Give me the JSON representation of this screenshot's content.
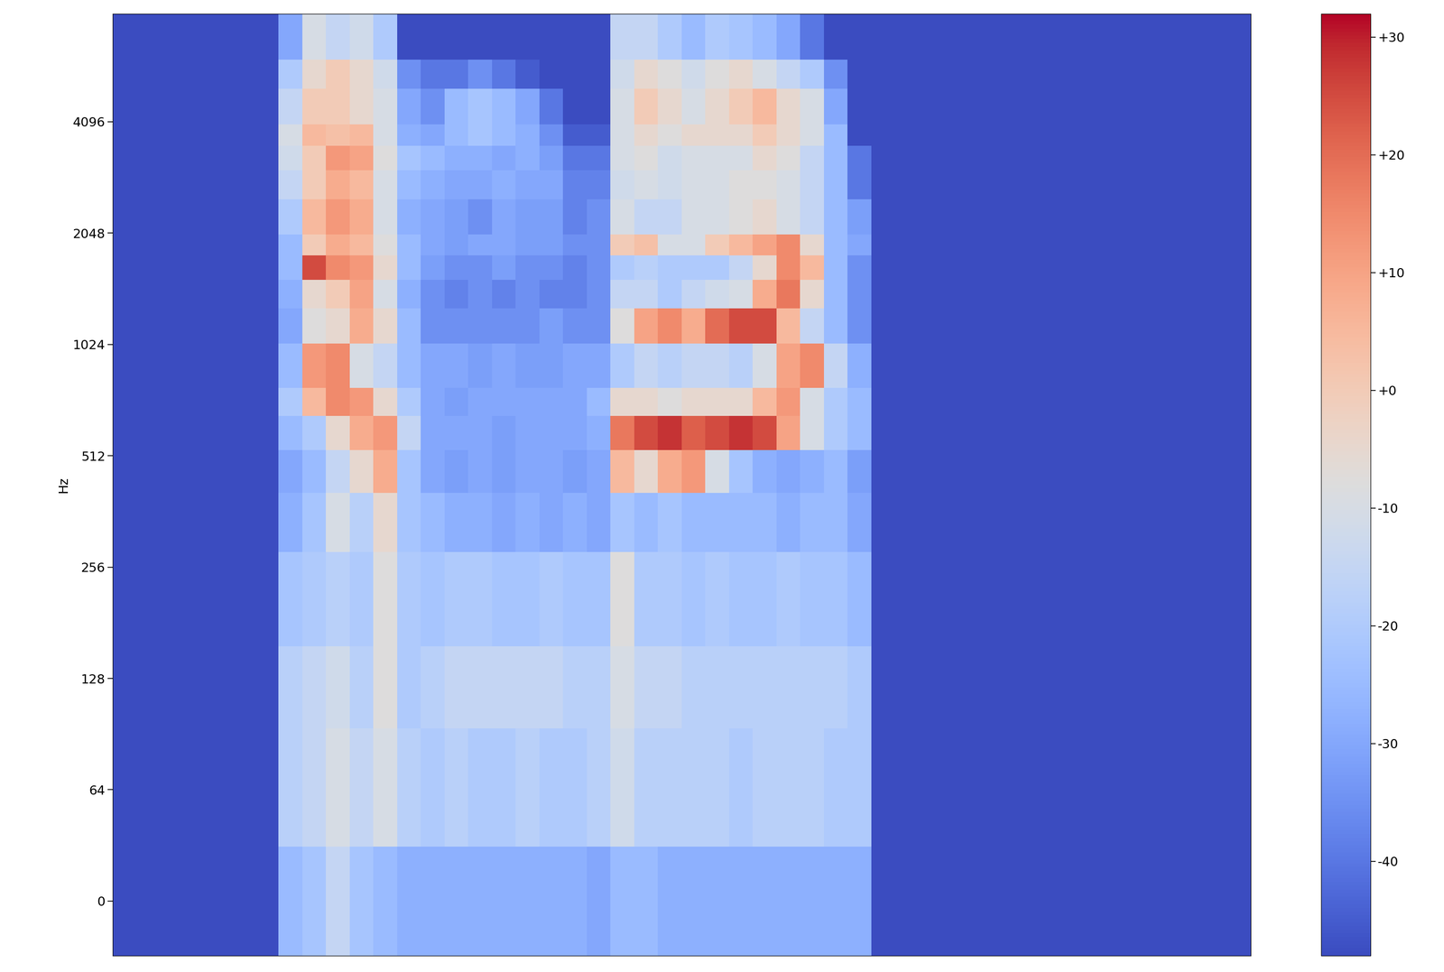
{
  "chart_data": {
    "type": "heatmap",
    "y_label": "Hz",
    "tick_labels": "y",
    "log": "y",
    "ylim": [
      -31.25,
      8031.25
    ],
    "yticks": [
      0,
      64,
      128,
      256,
      512,
      1024,
      2048,
      4096
    ],
    "freq_edges": [
      -31.25,
      31.25,
      93.75,
      156.25,
      281.25,
      406.25,
      531.25,
      656.25,
      781.25,
      1031.25,
      1281.25,
      1531.25,
      1781.25,
      2031.25,
      2531.25,
      3031.25,
      3531.25,
      4031.25,
      5031.25,
      6031.25,
      8031.25
    ],
    "cells": [
      [
        -48,
        -48,
        -48,
        -48,
        -48,
        -48,
        -48,
        -25,
        -22,
        -15,
        -22,
        -25,
        -28,
        -28,
        -28,
        -28,
        -28,
        -28,
        -28,
        -28,
        -30,
        -25,
        -25,
        -28,
        -28,
        -28,
        -28,
        -28,
        -28,
        -28,
        -28,
        -28,
        -48,
        -48,
        -48,
        -48,
        -48,
        -48,
        -48,
        -48,
        -48,
        -48,
        -48,
        -48,
        -48,
        -48,
        -48,
        -48
      ],
      [
        -48,
        -48,
        -48,
        -48,
        -48,
        -48,
        -48,
        -18,
        -15,
        -10,
        -15,
        -10,
        -18,
        -20,
        -18,
        -20,
        -20,
        -18,
        -20,
        -20,
        -18,
        -12,
        -18,
        -18,
        -18,
        -18,
        -20,
        -18,
        -18,
        -18,
        -20,
        -20,
        -48,
        -48,
        -48,
        -48,
        -48,
        -48,
        -48,
        -48,
        -48,
        -48,
        -48,
        -48,
        -48,
        -48,
        -48,
        -48
      ],
      [
        -48,
        -48,
        -48,
        -48,
        -48,
        -48,
        -48,
        -18,
        -15,
        -12,
        -18,
        -8,
        -20,
        -18,
        -15,
        -15,
        -15,
        -15,
        -15,
        -18,
        -18,
        -10,
        -15,
        -15,
        -18,
        -18,
        -18,
        -18,
        -18,
        -18,
        -18,
        -20,
        -48,
        -48,
        -48,
        -48,
        -48,
        -48,
        -48,
        -48,
        -48,
        -48,
        -48,
        -48,
        -48,
        -48,
        -48,
        -48
      ],
      [
        -48,
        -48,
        -48,
        -48,
        -48,
        -48,
        -48,
        -22,
        -20,
        -18,
        -20,
        -8,
        -20,
        -22,
        -20,
        -20,
        -22,
        -22,
        -20,
        -22,
        -22,
        -8,
        -20,
        -20,
        -22,
        -20,
        -22,
        -22,
        -20,
        -22,
        -22,
        -25,
        -48,
        -48,
        -48,
        -48,
        -48,
        -48,
        -48,
        -48,
        -48,
        -48,
        -48,
        -48,
        -48,
        -48,
        -48,
        -48
      ],
      [
        -48,
        -48,
        -48,
        -48,
        -48,
        -48,
        -48,
        -28,
        -22,
        -10,
        -18,
        -5,
        -22,
        -25,
        -28,
        -28,
        -30,
        -28,
        -30,
        -28,
        -30,
        -22,
        -25,
        -22,
        -25,
        -25,
        -25,
        -25,
        -28,
        -25,
        -25,
        -30,
        -48,
        -48,
        -48,
        -48,
        -48,
        -48,
        -48,
        -48,
        -48,
        -48,
        -48,
        -48,
        -48,
        -48,
        -48,
        -48
      ],
      [
        -48,
        -48,
        -48,
        -48,
        -48,
        -48,
        -48,
        -30,
        -25,
        -15,
        -5,
        8,
        -22,
        -30,
        -32,
        -30,
        -32,
        -30,
        -30,
        -32,
        -30,
        5,
        -5,
        8,
        12,
        -10,
        -22,
        -28,
        -30,
        -28,
        -25,
        -32,
        -48,
        -48,
        -48,
        -48,
        -48,
        -48,
        -48,
        -48,
        -48,
        -48,
        -48,
        -48,
        -48,
        -48,
        -48,
        -48
      ],
      [
        -48,
        -48,
        -48,
        -48,
        -48,
        -48,
        -48,
        -25,
        -20,
        -5,
        8,
        12,
        -15,
        -30,
        -30,
        -30,
        -32,
        -30,
        -30,
        -30,
        -28,
        18,
        25,
        28,
        22,
        25,
        28,
        25,
        10,
        -10,
        -20,
        -25,
        -48,
        -48,
        -48,
        -48,
        -48,
        -48,
        -48,
        -48,
        -48,
        -48,
        -48,
        -48,
        -48,
        -48,
        -48,
        -48
      ],
      [
        -48,
        -48,
        -48,
        -48,
        -48,
        -48,
        -48,
        -20,
        5,
        15,
        12,
        -5,
        -20,
        -30,
        -32,
        -30,
        -30,
        -30,
        -30,
        -30,
        -25,
        -5,
        -5,
        -8,
        -5,
        -5,
        -5,
        5,
        12,
        -10,
        -20,
        -25,
        -48,
        -48,
        -48,
        -48,
        -48,
        -48,
        -48,
        -48,
        -48,
        -48,
        -48,
        -48,
        -48,
        -48,
        -48,
        -48
      ],
      [
        -48,
        -48,
        -48,
        -48,
        -48,
        -48,
        -48,
        -25,
        12,
        15,
        -10,
        -15,
        -25,
        -30,
        -30,
        -32,
        -30,
        -32,
        -32,
        -30,
        -30,
        -20,
        -15,
        -18,
        -15,
        -15,
        -18,
        -10,
        10,
        15,
        -15,
        -28,
        -48,
        -48,
        -48,
        -48,
        -48,
        -48,
        -48,
        -48,
        -48,
        -48,
        -48,
        -48,
        -48,
        -48,
        -48,
        -48
      ],
      [
        -48,
        -48,
        -48,
        -48,
        -48,
        -48,
        -48,
        -30,
        -8,
        -5,
        8,
        -5,
        -25,
        -35,
        -35,
        -35,
        -35,
        -35,
        -32,
        -35,
        -35,
        -8,
        10,
        15,
        8,
        20,
        25,
        25,
        5,
        -15,
        -25,
        -35,
        -48,
        -48,
        -48,
        -48,
        -48,
        -48,
        -48,
        -48,
        -48,
        -48,
        -48,
        -48,
        -48,
        -48,
        -48,
        -48
      ],
      [
        -48,
        -48,
        -48,
        -48,
        -48,
        -48,
        -48,
        -28,
        -5,
        0,
        10,
        -10,
        -28,
        -35,
        -38,
        -35,
        -38,
        -35,
        -38,
        -38,
        -35,
        -15,
        -15,
        -20,
        -15,
        -12,
        -10,
        8,
        18,
        -5,
        -25,
        -35,
        -48,
        -48,
        -48,
        -48,
        -48,
        -48,
        -48,
        -48,
        -48,
        -48,
        -48,
        -48,
        -48,
        -48,
        -48,
        -48
      ],
      [
        -48,
        -48,
        -48,
        -48,
        -48,
        -48,
        -48,
        -25,
        25,
        15,
        12,
        -5,
        -25,
        -32,
        -35,
        -35,
        -32,
        -35,
        -35,
        -38,
        -35,
        -20,
        -18,
        -20,
        -20,
        -20,
        -15,
        -5,
        15,
        5,
        -25,
        -35,
        -48,
        -48,
        -48,
        -48,
        -48,
        -48,
        -48,
        -48,
        -48,
        -48,
        -48,
        -48,
        -48,
        -48,
        -48,
        -48
      ],
      [
        -48,
        -48,
        -48,
        -48,
        -48,
        -48,
        -48,
        -25,
        0,
        8,
        5,
        -8,
        -25,
        -30,
        -32,
        -30,
        -30,
        -32,
        -32,
        -35,
        -35,
        0,
        3,
        -10,
        -10,
        0,
        5,
        10,
        15,
        -5,
        -25,
        -30,
        -48,
        -48,
        -48,
        -48,
        -48,
        -48,
        -48,
        -48,
        -48,
        -48,
        -48,
        -48,
        -48,
        -48,
        -48,
        -48
      ],
      [
        -48,
        -48,
        -48,
        -48,
        -48,
        -48,
        -48,
        -20,
        5,
        12,
        8,
        -10,
        -28,
        -30,
        -32,
        -35,
        -30,
        -32,
        -32,
        -38,
        -35,
        -10,
        -15,
        -15,
        -10,
        -10,
        -8,
        -5,
        -10,
        -15,
        -25,
        -32,
        -48,
        -48,
        -48,
        -48,
        -48,
        -48,
        -48,
        -48,
        -48,
        -48,
        -48,
        -48,
        -48,
        -48,
        -48,
        -48
      ],
      [
        -48,
        -48,
        -48,
        -48,
        -48,
        -48,
        -48,
        -15,
        0,
        8,
        5,
        -10,
        -25,
        -28,
        -30,
        -30,
        -28,
        -30,
        -30,
        -38,
        -38,
        -12,
        -10,
        -12,
        -10,
        -10,
        -8,
        -8,
        -10,
        -15,
        -25,
        -40,
        -48,
        -48,
        -48,
        -48,
        -48,
        -48,
        -48,
        -48,
        -48,
        -48,
        -48,
        -48,
        -48,
        -48,
        -48,
        -48
      ],
      [
        -48,
        -48,
        -48,
        -48,
        -48,
        -48,
        -48,
        -12,
        0,
        12,
        10,
        -8,
        -22,
        -25,
        -28,
        -28,
        -30,
        -28,
        -32,
        -40,
        -40,
        -10,
        -8,
        -12,
        -10,
        -10,
        -10,
        -5,
        -8,
        -15,
        -25,
        -40,
        -48,
        -48,
        -48,
        -48,
        -48,
        -48,
        -48,
        -48,
        -48,
        -48,
        -48,
        -48,
        -48,
        -48,
        -48,
        -48
      ],
      [
        -48,
        -48,
        -48,
        -48,
        -48,
        -48,
        -48,
        -10,
        5,
        3,
        5,
        -10,
        -28,
        -30,
        -25,
        -22,
        -25,
        -28,
        -35,
        -45,
        -45,
        -10,
        -5,
        -8,
        -5,
        -5,
        -5,
        0,
        -5,
        -10,
        -25,
        -48,
        -48,
        -48,
        -48,
        -48,
        -48,
        -48,
        -48,
        -48,
        -48,
        -48,
        -48,
        -48,
        -48,
        -48,
        -48,
        -48
      ],
      [
        -48,
        -48,
        -48,
        -48,
        -48,
        -48,
        -48,
        -15,
        0,
        0,
        -5,
        -10,
        -30,
        -35,
        -25,
        -22,
        -25,
        -30,
        -40,
        -48,
        -48,
        -10,
        0,
        -5,
        -10,
        -5,
        0,
        5,
        -5,
        -10,
        -30,
        -48,
        -48,
        -48,
        -48,
        -48,
        -48,
        -48,
        -48,
        -48,
        -48,
        -48,
        -48,
        -48,
        -48,
        -48,
        -48,
        -48
      ],
      [
        -48,
        -48,
        -48,
        -48,
        -48,
        -48,
        -48,
        -20,
        -5,
        0,
        -5,
        -12,
        -35,
        -40,
        -40,
        -35,
        -40,
        -45,
        -48,
        -48,
        -48,
        -12,
        -5,
        -8,
        -12,
        -8,
        -5,
        -10,
        -15,
        -20,
        -35,
        -48,
        -48,
        -48,
        -48,
        -48,
        -48,
        -48,
        -48,
        -48,
        -48,
        -48,
        -48,
        -48,
        -48,
        -48,
        -48,
        -48
      ],
      [
        -48,
        -48,
        -48,
        -48,
        -48,
        -48,
        -48,
        -30,
        -10,
        -15,
        -12,
        -20,
        -48,
        -48,
        -48,
        -48,
        -48,
        -48,
        -48,
        -48,
        -48,
        -15,
        -15,
        -20,
        -25,
        -20,
        -22,
        -25,
        -30,
        -40,
        -48,
        -48,
        -48,
        -48,
        -48,
        -48,
        -48,
        -48,
        -48,
        -48,
        -48,
        -48,
        -48,
        -48,
        -48,
        -48,
        -48,
        -48
      ]
    ],
    "colorbar_range": [
      -48,
      32
    ],
    "colorbar_ticks": [
      {
        "value": 30,
        "label": "+30"
      },
      {
        "value": 20,
        "label": "+20"
      },
      {
        "value": 10,
        "label": "+10"
      },
      {
        "value": 0,
        "label": "+0"
      },
      -10,
      -20,
      -30,
      -40
    ]
  }
}
